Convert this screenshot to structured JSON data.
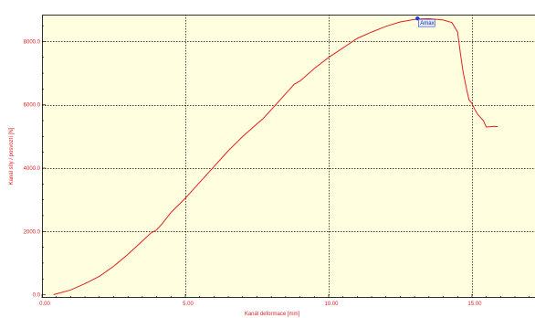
{
  "chart_data": {
    "type": "line",
    "title": "",
    "xlabel": "Kanál deformace [mm]",
    "ylabel": "Kanál síly / posvoztí [N]",
    "xlim": [
      0,
      17.2
    ],
    "ylim": [
      -100,
      8850
    ],
    "x_ticks": [
      0,
      5,
      10,
      15
    ],
    "x_tick_labels": [
      "0.00",
      "5.00",
      "10.00",
      "15.00"
    ],
    "y_ticks": [
      0,
      2000,
      4000,
      6000,
      8000
    ],
    "y_tick_labels": [
      "0.0",
      "2000.0",
      "4000.0",
      "6000.0",
      "8000.0"
    ],
    "grid": true,
    "legend": "none",
    "colors": {
      "plot_background": "#ffffe0",
      "line": "#e02020",
      "text": "#e02020",
      "grid": "#000000",
      "marker": "#1a3bd8",
      "annotation_box": "#e4ecff"
    },
    "series": [
      {
        "x": [
          0.4,
          1.0,
          1.5,
          2.0,
          2.5,
          3.0,
          3.5,
          3.8,
          4.0,
          4.2,
          4.5,
          5.0,
          5.5,
          6.0,
          6.5,
          7.0,
          7.5,
          7.7,
          8.0,
          8.5,
          8.8,
          9.0,
          9.5,
          10.0,
          10.5,
          11.0,
          11.5,
          12.0,
          12.5,
          13.0,
          13.2,
          13.5,
          13.8,
          14.0,
          14.3,
          14.5,
          14.6,
          14.7,
          14.8,
          14.85,
          14.9,
          15.0,
          15.1,
          15.2,
          15.3,
          15.4,
          15.5,
          15.8,
          15.9
        ],
        "y": [
          0,
          150,
          350,
          580,
          900,
          1280,
          1700,
          1950,
          2050,
          2250,
          2600,
          3050,
          3550,
          4050,
          4550,
          5000,
          5400,
          5550,
          5850,
          6350,
          6650,
          6750,
          7150,
          7500,
          7800,
          8100,
          8300,
          8480,
          8620,
          8700,
          8710,
          8720,
          8700,
          8680,
          8600,
          8300,
          7600,
          7000,
          6550,
          6350,
          6150,
          6050,
          5850,
          5700,
          5600,
          5500,
          5300,
          5320,
          5310
        ]
      }
    ],
    "annotations": [
      {
        "text": "Amax",
        "x": 13.1,
        "y": 8730
      }
    ]
  }
}
